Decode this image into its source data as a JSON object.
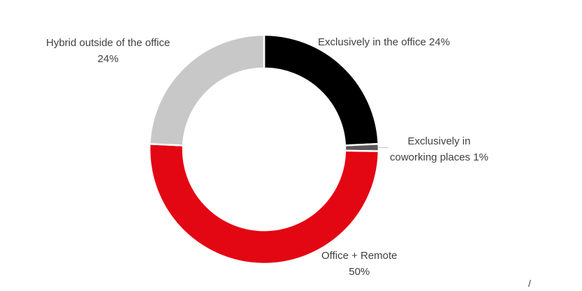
{
  "chart_data": {
    "type": "pie",
    "variant": "donut",
    "slices": [
      {
        "label_lines": [
          "Exclusively in the office 24%"
        ],
        "category": "Exclusively in the office",
        "value": 24,
        "color": "#000000"
      },
      {
        "label_lines": [
          "Exclusively in",
          "coworking places 1%"
        ],
        "category": "Exclusively in coworking places",
        "value": 1,
        "color": "#595959"
      },
      {
        "label_lines": [
          "Office + Remote",
          "50%"
        ],
        "category": "Office + Remote",
        "value": 50,
        "color": "#e30613"
      },
      {
        "label_lines": [
          "Hybrid outside of the office",
          "24%"
        ],
        "category": "Hybrid outside of the office",
        "value": 24,
        "color": "#c8c8c8"
      }
    ],
    "legend": "none",
    "leader_line_color": "#bfbfbf"
  },
  "footer_mark": "/"
}
